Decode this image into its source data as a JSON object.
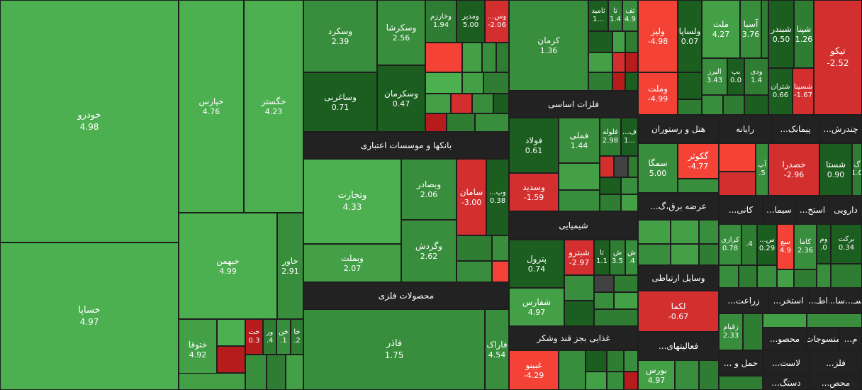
{
  "colors": {
    "green_light": "#4caf50",
    "green": "#43a047",
    "green_mid": "#388e3c",
    "green_dark": "#2e7d32",
    "green_darkest": "#1b5e20",
    "red_light": "#f44336",
    "red": "#d32f2f",
    "red_dark": "#b71c1c",
    "gray": "#424242",
    "header_bg": "#222222"
  },
  "sectors": {
    "banks": "بانکها و موسسات اعتباری",
    "metals": "محصولات فلزی",
    "basic_metals": "فلزات اساسی",
    "chemicals": "شیمیایی",
    "food": "غذایی بجز قند وشکر",
    "hotel": "هتل و رستوران",
    "computer": "رایانه",
    "cement": "پیمانک...",
    "multi": "چندرش...",
    "power": "عرضه برق،گ...",
    "mining": "کانی...",
    "sima": "سیما...",
    "extract": "استخ...",
    "pharma": "دارویی",
    "telecom": "وسایل ارتباطی",
    "agri": "زراعت...",
    "extract2": "استخر...",
    "ata": "اطـ...",
    "sasa": "سـ...سا...",
    "activities": "فعالیتهای...",
    "products": "محصو...",
    "textile": "منسوجات",
    "m": "م...",
    "transport": "حمل و ...",
    "rubber": "لاست...",
    "wood": "فلز...",
    "handicraft": "دستگ...",
    "mahs": "محص..."
  },
  "tiles": {
    "khodro": {
      "name": "خودرو",
      "value": "4.98"
    },
    "khsapa": {
      "name": "خساپا",
      "value": "4.97"
    },
    "kharis": {
      "name": "خپارس",
      "value": "4.76"
    },
    "khgostar": {
      "name": "خگستر",
      "value": "4.23"
    },
    "khbahman": {
      "name": "خبهمن",
      "value": "4.99"
    },
    "khavar": {
      "name": "خاور",
      "value": "2.91"
    },
    "khtoga": {
      "name": "ختوقا",
      "value": "4.92"
    },
    "khot": {
      "name": "خت",
      "value": "0.3"
    },
    "vor": {
      "name": "ور",
      "value": ".4"
    },
    "khon": {
      "name": "خن",
      "value": ".1"
    },
    "kha": {
      "name": "خا",
      "value": ".2"
    },
    "vaskord": {
      "name": "وسکرد",
      "value": "2.39"
    },
    "vaskorsha": {
      "name": "وسکرشا",
      "value": "2.56"
    },
    "vakharzam": {
      "name": "وخارزم",
      "value": "1.94"
    },
    "vamodir": {
      "name": "ومدیر",
      "value": "5.00"
    },
    "vas": {
      "name": "وس...",
      "value": "-2.06"
    },
    "vasagh": {
      "name": "وساغربی",
      "value": "0.71"
    },
    "vaskerman": {
      "name": "وسکرمان",
      "value": "0.47"
    },
    "kerman": {
      "name": "کرمان",
      "value": "1.36"
    },
    "vatejarat": {
      "name": "وتجارت",
      "value": "4.33"
    },
    "vabsader": {
      "name": "وبصادر",
      "value": "2.06"
    },
    "saman": {
      "name": "سامان",
      "value": "-3.00"
    },
    "vap": {
      "name": "وپ...",
      "value": "0.38"
    },
    "vabmelat": {
      "name": "وبملت",
      "value": "2.07"
    },
    "vagardesh": {
      "name": "وگردش",
      "value": "2.62"
    },
    "fazar": {
      "name": "فاذر",
      "value": "1.75"
    },
    "faarak": {
      "name": "فاراک",
      "value": "4.54"
    },
    "foolad": {
      "name": "فولاد",
      "value": "0.61"
    },
    "famli": {
      "name": "فملی",
      "value": "1.44"
    },
    "folole": {
      "name": "فلوله",
      "value": "2.98"
    },
    "fa1": {
      "name": "ف...",
      "value": "1..."
    },
    "vasdid": {
      "name": "وسدید",
      "value": "-1.59"
    },
    "pterol": {
      "name": "پترول",
      "value": "0.74"
    },
    "shatro": {
      "name": "شبترو",
      "value": "-2.97"
    },
    "ta": {
      "name": "تا",
      "value": "1.1"
    },
    "sh1": {
      "name": "ش",
      "value": "3.5"
    },
    "sh2": {
      "name": "ش",
      "value": ".4"
    },
    "shafars": {
      "name": "شفارس",
      "value": "4.97"
    },
    "ghbino": {
      "name": "غبینو",
      "value": "-4.29"
    },
    "tf": {
      "name": "ثف",
      "value": "4.9"
    },
    "ta2": {
      "name": "تا",
      "value": "1.4"
    },
    "tamid": {
      "name": "ثامید",
      "value": "1..."
    },
    "valiz": {
      "name": "ولیز",
      "value": "-4.98"
    },
    "valsapa": {
      "name": "ولساپا",
      "value": "0.07"
    },
    "melat": {
      "name": "ملت",
      "value": "4.27"
    },
    "asia": {
      "name": "آسیا",
      "value": "3.76"
    },
    "shbandar": {
      "name": "شبندر",
      "value": "0.50"
    },
    "shpna": {
      "name": "شپنا",
      "value": "1.26"
    },
    "tikco": {
      "name": "تیکو",
      "value": "-2.52"
    },
    "alborz": {
      "name": "البرز",
      "value": "3.43"
    },
    "bb": {
      "name": "بپ",
      "value": "0.0"
    },
    "vadi": {
      "name": "ودی",
      "value": "1.4"
    },
    "vamlat": {
      "name": "وملت",
      "value": "-4.99"
    },
    "shtran": {
      "name": "شتران",
      "value": "0.66"
    },
    "shsina": {
      "name": "شسینا",
      "value": "-1.67"
    },
    "semga": {
      "name": "سمگا",
      "value": "5.00"
    },
    "ggostar": {
      "name": "گکوثر",
      "value": "-4.77"
    },
    "ap": {
      "name": "آپ",
      "value": ".5"
    },
    "khasdra": {
      "name": "خصدرا",
      "value": "-2.96"
    },
    "shasta": {
      "name": "شستا",
      "value": "0.90"
    },
    "g1": {
      "name": "گ",
      "value": "1.0"
    },
    "lakma": {
      "name": "لکما",
      "value": "-0.67"
    },
    "karazi": {
      "name": "کرازی",
      "value": "0.78"
    },
    "x4": {
      "name": "",
      "value": ".4"
    },
    "s1": {
      "name": "س...",
      "value": "0.29"
    },
    "saa": {
      "name": "سع",
      "value": "4.9"
    },
    "kama": {
      "name": "کاما",
      "value": "2.36"
    },
    "vm": {
      "name": "وم",
      "value": ".0"
    },
    "barkat": {
      "name": "برکت",
      "value": "0.34"
    },
    "zaghiam": {
      "name": "زقیام",
      "value": "2.33"
    },
    "bourse": {
      "name": "بورس",
      "value": "4.97"
    }
  }
}
